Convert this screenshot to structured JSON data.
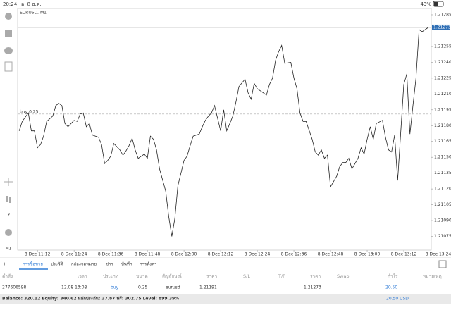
{
  "status_bar": {
    "time": "20:24",
    "date": "อ. 8 ธ.ค.",
    "battery": "43%"
  },
  "chart_data": {
    "type": "line",
    "title": "EURUSD, M1",
    "color": "#222222",
    "x": [
      666,
      667,
      669,
      670,
      671,
      672,
      673,
      674,
      675,
      677,
      678,
      679,
      680,
      681,
      682,
      684,
      685,
      686,
      687,
      688,
      689,
      690,
      692,
      693,
      694,
      695,
      696,
      697,
      699,
      700,
      701,
      702,
      703,
      704,
      705,
      707,
      708,
      709,
      710,
      711,
      712,
      714,
      715,
      716,
      717,
      718,
      719,
      720,
      721,
      722,
      723,
      725,
      726,
      727,
      728,
      729,
      730,
      732,
      733,
      734,
      735,
      736,
      737,
      738,
      740,
      741,
      742,
      743,
      744,
      745,
      747,
      748,
      749,
      750,
      751,
      752,
      753,
      755,
      756,
      757,
      758,
      759,
      760,
      762,
      763,
      764,
      765,
      766,
      767,
      768,
      770,
      771,
      772,
      773,
      774,
      775,
      777,
      778,
      779,
      780,
      781,
      782,
      783,
      785,
      786,
      787,
      788,
      789,
      790,
      792,
      793,
      794,
      795,
      796,
      797,
      798,
      800
    ],
    "values": [
      1.21175,
      1.21184,
      1.21192,
      1.21175,
      1.21175,
      1.21159,
      1.21162,
      1.2117,
      1.21184,
      1.21189,
      1.21199,
      1.21201,
      1.21199,
      1.21182,
      1.21179,
      1.21185,
      1.21184,
      1.21191,
      1.21192,
      1.21179,
      1.21182,
      1.21171,
      1.21169,
      1.21162,
      1.21144,
      1.21147,
      1.21151,
      1.21163,
      1.21157,
      1.21152,
      1.21156,
      1.21161,
      1.21168,
      1.21157,
      1.21149,
      1.21153,
      1.21149,
      1.2117,
      1.21167,
      1.21157,
      1.21139,
      1.21118,
      1.21094,
      1.21075,
      1.21092,
      1.21123,
      1.21135,
      1.21147,
      1.21151,
      1.21161,
      1.2117,
      1.21172,
      1.21179,
      1.21185,
      1.21189,
      1.21192,
      1.21199,
      1.21175,
      1.21195,
      1.21175,
      1.21182,
      1.21189,
      1.21202,
      1.21217,
      1.21224,
      1.21211,
      1.21205,
      1.2122,
      1.21215,
      1.21213,
      1.21209,
      1.21219,
      1.21225,
      1.21242,
      1.2125,
      1.21256,
      1.21239,
      1.2124,
      1.21225,
      1.21215,
      1.21192,
      1.21184,
      1.21184,
      1.21167,
      1.21155,
      1.21152,
      1.21157,
      1.21149,
      1.21152,
      1.21122,
      1.21132,
      1.21141,
      1.21145,
      1.21145,
      1.21149,
      1.21139,
      1.21149,
      1.21159,
      1.21153,
      1.21167,
      1.21179,
      1.21167,
      1.21182,
      1.21185,
      1.21169,
      1.21157,
      1.21155,
      1.21171,
      1.21128,
      1.21219,
      1.21229,
      1.21172,
      1.21199,
      1.21225,
      1.21271,
      1.21269,
      1.21273
    ],
    "xlim": [
      665.5,
      801
    ],
    "xticks": [
      {
        "value": 672,
        "label": "8 Dec 11:12"
      },
      {
        "value": 684,
        "label": "8 Dec 11:24"
      },
      {
        "value": 696,
        "label": "8 Dec 11:36"
      },
      {
        "value": 708,
        "label": "8 Dec 11:48"
      },
      {
        "value": 720,
        "label": "8 Dec 12:00"
      },
      {
        "value": 732,
        "label": "8 Dec 12:12"
      },
      {
        "value": 744,
        "label": "8 Dec 12:24"
      },
      {
        "value": 756,
        "label": "8 Dec 12:36"
      },
      {
        "value": 768,
        "label": "8 Dec 12:48"
      },
      {
        "value": 780,
        "label": "8 Dec 13:00"
      },
      {
        "value": 792,
        "label": "8 Dec 13:12"
      },
      {
        "value": 804,
        "label": "8 Dec 13:24"
      }
    ],
    "ylim": [
      1.21062,
      1.21291
    ],
    "yticks": [
      1.21285,
      1.21255,
      {
        "value": 1.2124,
        "label": "1.21240"
      },
      1.21225,
      {
        "value": 1.2121,
        "label": "1.21210"
      },
      1.21195,
      {
        "value": 1.2118,
        "label": "1.21180"
      },
      1.21165,
      {
        "value": 1.2115,
        "label": "1.21150"
      },
      1.21135,
      {
        "value": 1.2112,
        "label": "1.21120"
      },
      1.21105,
      {
        "value": 1.2109,
        "label": "1.21090"
      },
      1.21075
    ],
    "order_line": {
      "label": "buy 0.25",
      "value": 1.21191
    },
    "bid": 1.21273
  },
  "tabs": [
    "การซื้อขาย",
    "ประวัติ",
    "กล่องจดหมาย",
    "ข่าว",
    "บันทึก",
    "การตั้งค่า"
  ],
  "table": {
    "header": [
      "คำสั่ง",
      "เวลา",
      "ประเภท",
      "ขนาด",
      "สัญลักษณ์",
      "ราคา",
      "S/L",
      "T/P",
      "ราคา",
      "Swap",
      "กำไร",
      "หมายเหตุ"
    ],
    "row": {
      "ticket": "277606598",
      "time": "12.08 13:08",
      "type": "buy",
      "volume": "0.25",
      "symbol": "eurusd",
      "open_price": "1.21191",
      "price": "1.21273",
      "profit": "20.50"
    }
  },
  "footer": {
    "summary": "Balance: 320.12 Equity: 340.62 หลักประกัน: 37.87 ฟรี: 302.75 Level: 899.39%",
    "total": "20.50 USD"
  }
}
